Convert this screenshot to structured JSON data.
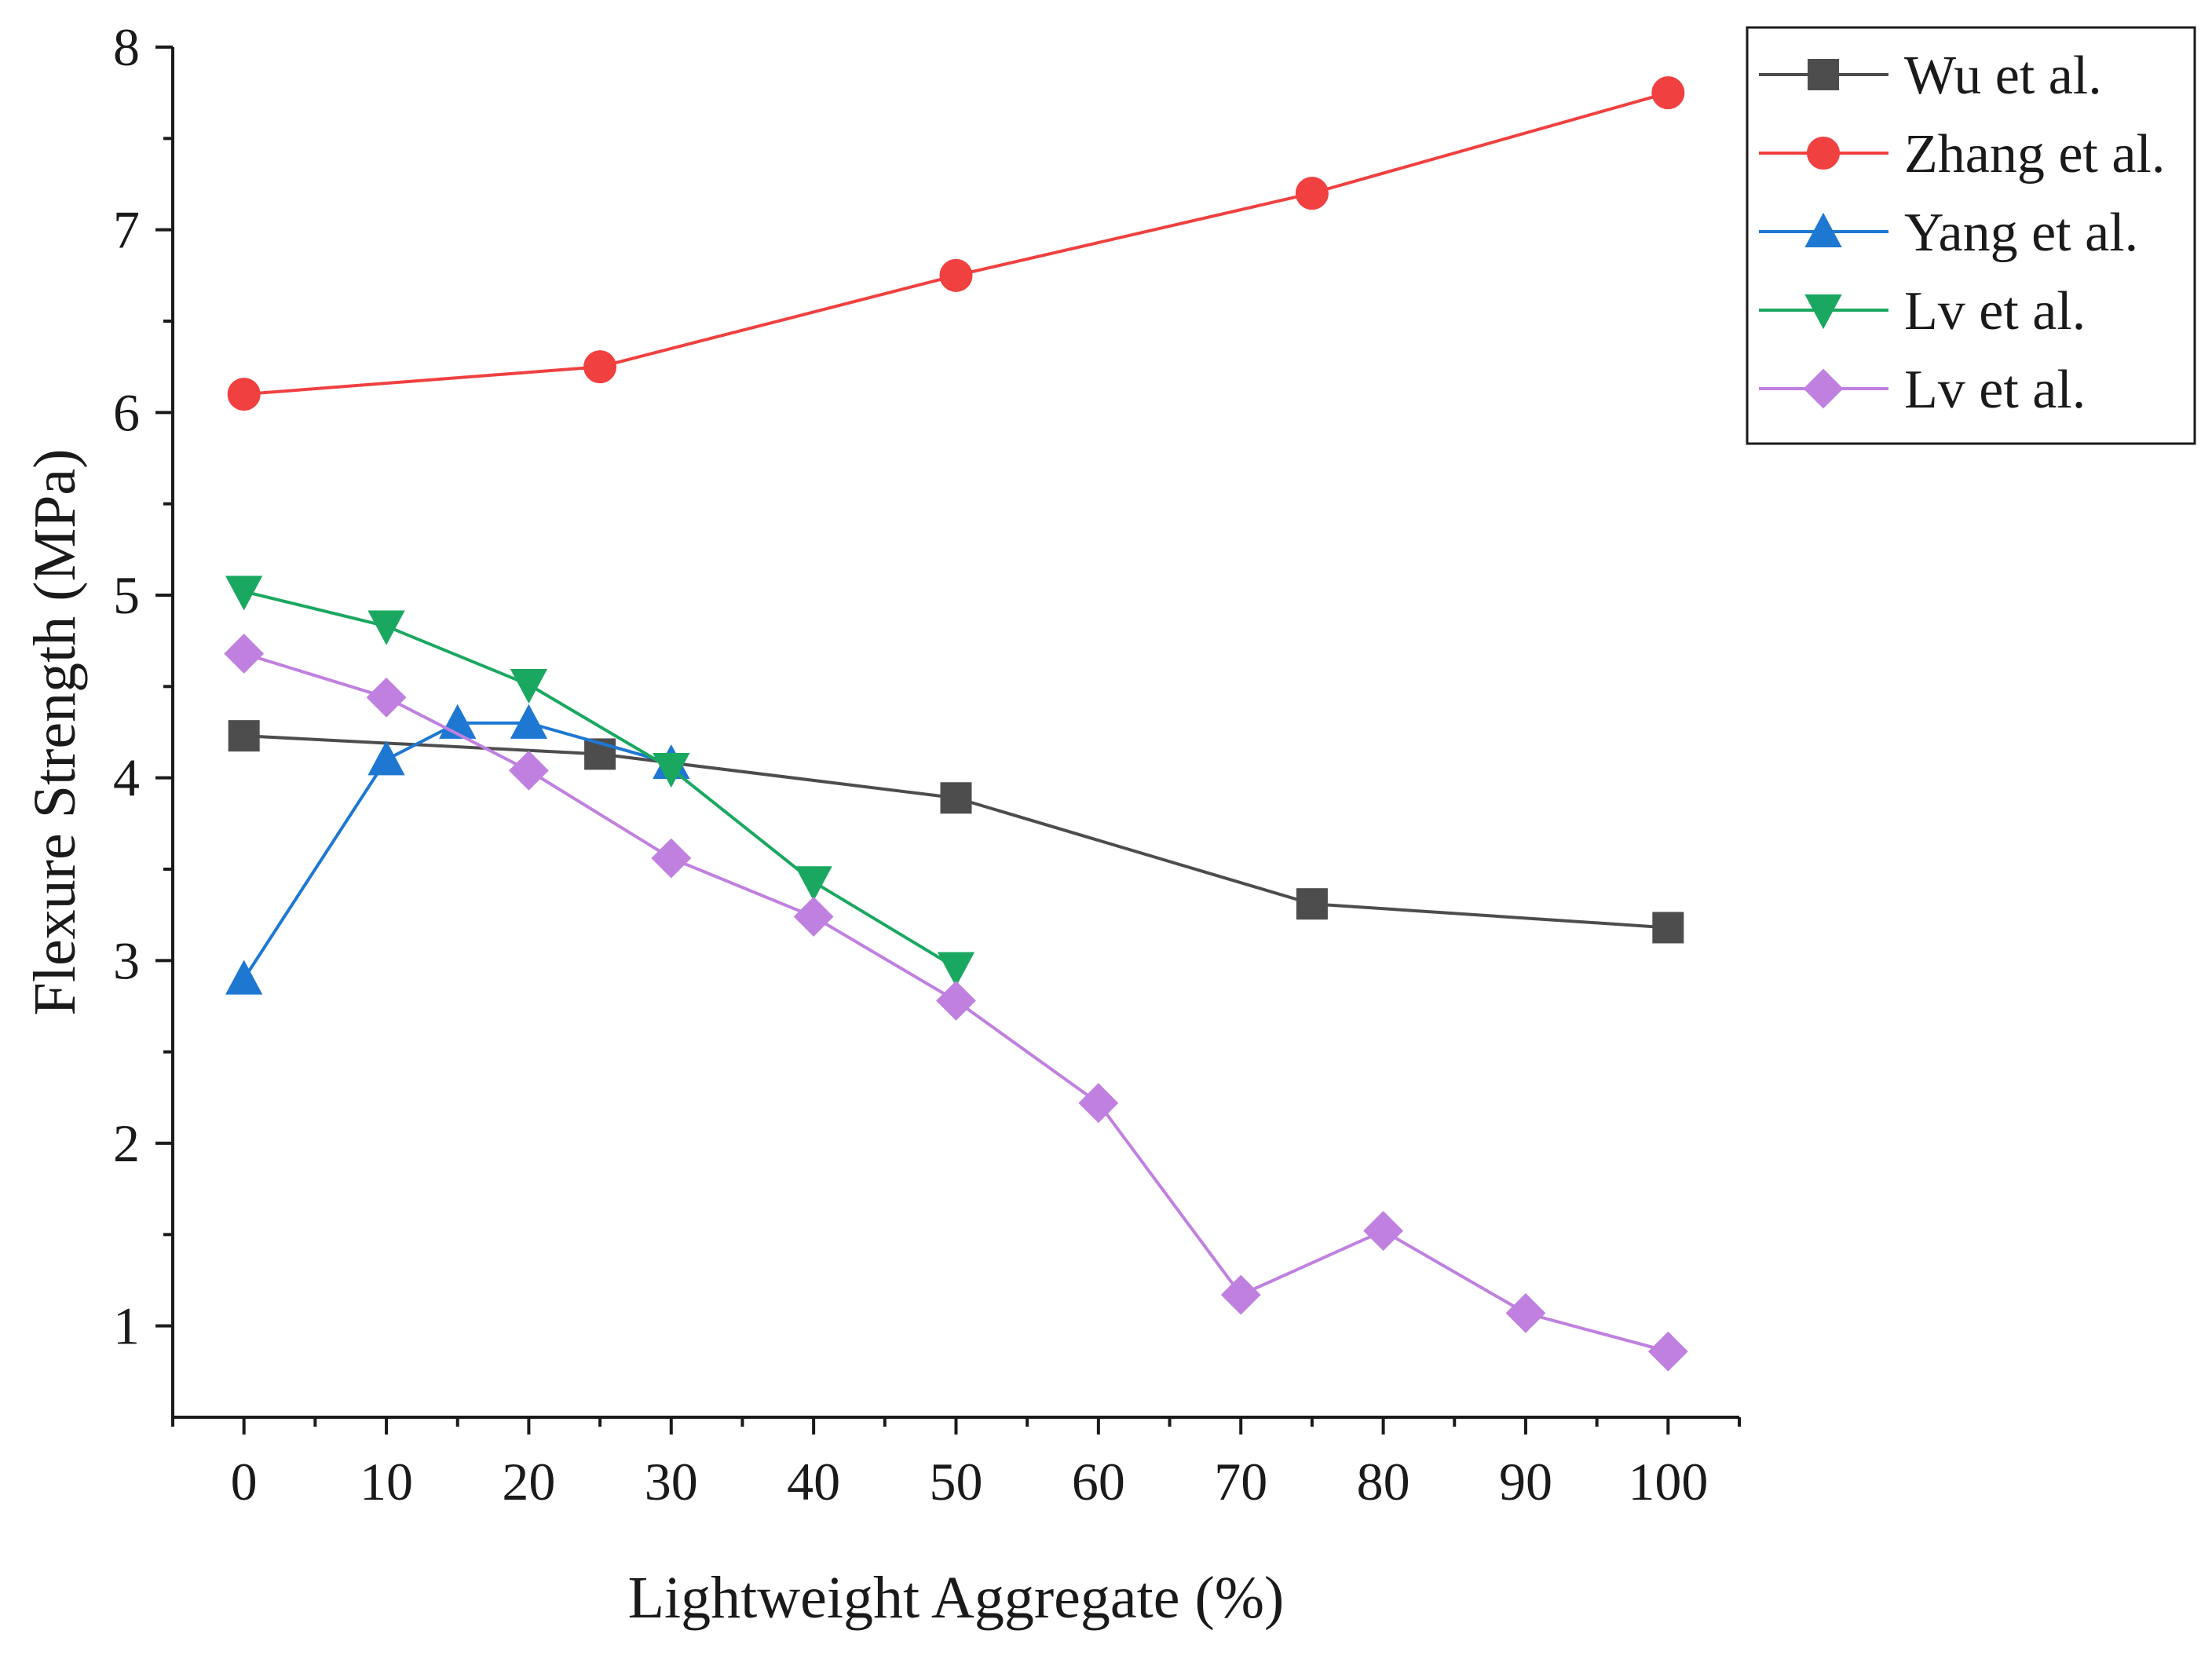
{
  "chart_data": {
    "type": "line",
    "title": "",
    "xlabel": "Lightweight Aggregate (%)",
    "ylabel": "Flexure Strength (MPa)",
    "xlim": [
      -5,
      105
    ],
    "ylim": [
      0.5,
      8
    ],
    "xticks": [
      0,
      10,
      20,
      30,
      40,
      50,
      60,
      70,
      80,
      90,
      100
    ],
    "yticks": [
      1,
      2,
      3,
      4,
      5,
      6,
      7,
      8
    ],
    "legend_position": "top-right",
    "grid": false,
    "series": [
      {
        "name": "Wu et al.",
        "color": "#4d4d4d",
        "marker": "square",
        "x": [
          0,
          25,
          50,
          75,
          100
        ],
        "y": [
          4.23,
          4.13,
          3.89,
          3.31,
          3.18
        ]
      },
      {
        "name": "Zhang et al.",
        "color": "#f04040",
        "marker": "circle",
        "x": [
          0,
          25,
          50,
          75,
          100
        ],
        "y": [
          6.1,
          6.25,
          6.75,
          7.2,
          7.75
        ]
      },
      {
        "name": "Yang et al.",
        "color": "#1e78d2",
        "marker": "triangle-up",
        "x": [
          0,
          10,
          15,
          20,
          30
        ],
        "y": [
          2.9,
          4.1,
          4.3,
          4.3,
          4.08
        ]
      },
      {
        "name": "Lv et al.",
        "color": "#1aa860",
        "marker": "triangle-down",
        "x": [
          0,
          10,
          20,
          30,
          40,
          50
        ],
        "y": [
          5.02,
          4.83,
          4.51,
          4.05,
          3.43,
          2.96
        ]
      },
      {
        "name": "Lv et al.",
        "color": "#c080e0",
        "marker": "diamond",
        "x": [
          0,
          10,
          20,
          30,
          40,
          50,
          60,
          70,
          80,
          90,
          100
        ],
        "y": [
          4.68,
          4.44,
          4.04,
          3.56,
          3.24,
          2.78,
          2.22,
          1.17,
          1.52,
          1.07,
          0.86
        ]
      }
    ]
  }
}
